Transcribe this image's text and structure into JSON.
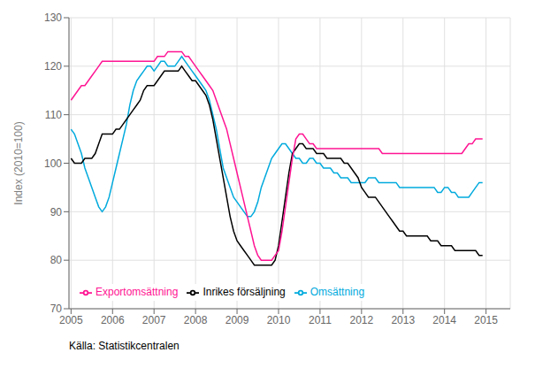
{
  "chart_data": {
    "type": "line",
    "ylabel": "Index (2010=100)",
    "annotations": [
      "Källa: Statistikcentralen"
    ],
    "xlim": [
      2004.95,
      2015.5833
    ],
    "xticks": [
      2005,
      2006,
      2007,
      2008,
      2009,
      2010,
      2011,
      2012,
      2013,
      2014,
      2015
    ],
    "ylim": [
      70,
      130
    ],
    "yticks": [
      70,
      80,
      90,
      100,
      110,
      120,
      130
    ],
    "grid": true,
    "legend": "lower left",
    "x": [
      2005,
      2005.0833,
      2005.1667,
      2005.25,
      2005.3333,
      2005.4167,
      2005.5,
      2005.5833,
      2005.6667,
      2005.75,
      2005.8333,
      2005.9167,
      2006,
      2006.0833,
      2006.1667,
      2006.25,
      2006.3333,
      2006.4167,
      2006.5,
      2006.5833,
      2006.6667,
      2006.75,
      2006.8333,
      2006.9167,
      2007,
      2007.0833,
      2007.1667,
      2007.25,
      2007.3333,
      2007.4167,
      2007.5,
      2007.5833,
      2007.6667,
      2007.75,
      2007.8333,
      2007.9167,
      2008,
      2008.0833,
      2008.1667,
      2008.25,
      2008.3333,
      2008.4167,
      2008.5,
      2008.5833,
      2008.6667,
      2008.75,
      2008.8333,
      2008.9167,
      2009,
      2009.0833,
      2009.1667,
      2009.25,
      2009.3333,
      2009.4167,
      2009.5,
      2009.5833,
      2009.6667,
      2009.75,
      2009.8333,
      2009.9167,
      2010,
      2010.0833,
      2010.1667,
      2010.25,
      2010.3333,
      2010.4167,
      2010.5,
      2010.5833,
      2010.6667,
      2010.75,
      2010.8333,
      2010.9167,
      2011,
      2011.0833,
      2011.1667,
      2011.25,
      2011.3333,
      2011.4167,
      2011.5,
      2011.5833,
      2011.6667,
      2011.75,
      2011.8333,
      2011.9167,
      2012,
      2012.0833,
      2012.1667,
      2012.25,
      2012.3333,
      2012.4167,
      2012.5,
      2012.5833,
      2012.6667,
      2012.75,
      2012.8333,
      2012.9167,
      2013,
      2013.0833,
      2013.1667,
      2013.25,
      2013.3333,
      2013.4167,
      2013.5,
      2013.5833,
      2013.6667,
      2013.75,
      2013.8333,
      2013.9167,
      2014,
      2014.0833,
      2014.1667,
      2014.25,
      2014.3333,
      2014.4167,
      2014.5,
      2014.5833,
      2014.6667,
      2014.75,
      2014.8333,
      2014.9167
    ],
    "series": [
      {
        "name": "Omsättning",
        "color": "#00aadd",
        "values": [
          107,
          106,
          104,
          102,
          99,
          97,
          95,
          93,
          91,
          90,
          91,
          93,
          96,
          99,
          102,
          105,
          108,
          112,
          115,
          117,
          118,
          119,
          120,
          120,
          119,
          120,
          121,
          121,
          120,
          120,
          120,
          121,
          122,
          121,
          120,
          119,
          118,
          117,
          116,
          115,
          113,
          110,
          107,
          103,
          99,
          97,
          95,
          93,
          92,
          91,
          90,
          89,
          89,
          90,
          92,
          95,
          97,
          99,
          101,
          102,
          103,
          104,
          104,
          103,
          102,
          101,
          101,
          100,
          100,
          101,
          101,
          100,
          100,
          99,
          99,
          99,
          98,
          98,
          97,
          97,
          97,
          96,
          96,
          96,
          96,
          96,
          97,
          97,
          97,
          96,
          96,
          96,
          96,
          96,
          96,
          95,
          95,
          95,
          95,
          95,
          95,
          95,
          95,
          95,
          95,
          95,
          94,
          94,
          95,
          95,
          94,
          94,
          93,
          93,
          93,
          93,
          94,
          95,
          96,
          96
        ]
      },
      {
        "name": "Inrikes försäljning",
        "color": "#000000",
        "values": [
          101,
          100,
          100,
          100,
          101,
          101,
          101,
          102,
          104,
          106,
          106,
          106,
          106,
          107,
          107,
          108,
          109,
          110,
          111,
          112,
          113,
          115,
          116,
          116,
          116,
          117,
          118,
          119,
          119,
          119,
          119,
          119,
          120,
          119,
          118,
          117,
          117,
          116,
          115,
          114,
          112,
          109,
          105,
          101,
          97,
          93,
          89,
          86,
          84,
          83,
          82,
          81,
          80,
          79,
          79,
          79,
          79,
          79,
          79,
          80,
          83,
          88,
          93,
          98,
          102,
          103,
          104,
          104,
          103,
          103,
          103,
          102,
          102,
          102,
          101,
          101,
          101,
          101,
          101,
          100,
          100,
          99,
          98,
          97,
          95,
          94,
          93,
          93,
          93,
          92,
          91,
          90,
          89,
          88,
          87,
          86,
          86,
          85,
          85,
          85,
          85,
          85,
          85,
          85,
          84,
          84,
          84,
          83,
          83,
          83,
          83,
          82,
          82,
          82,
          82,
          82,
          82,
          82,
          81,
          81
        ]
      },
      {
        "name": "Exportomsättning",
        "color": "#ff1493",
        "values": [
          113,
          114,
          115,
          116,
          116,
          117,
          118,
          119,
          120,
          121,
          121,
          121,
          121,
          121,
          121,
          121,
          121,
          121,
          121,
          121,
          121,
          121,
          121,
          121,
          121,
          122,
          122,
          122,
          123,
          123,
          123,
          123,
          123,
          122,
          122,
          121,
          120,
          119,
          118,
          117,
          116,
          115,
          113,
          111,
          109,
          107,
          104,
          101,
          98,
          95,
          92,
          89,
          86,
          83,
          81,
          80,
          80,
          80,
          80,
          81,
          82,
          86,
          91,
          96,
          101,
          105,
          106,
          106,
          105,
          104,
          104,
          103,
          103,
          103,
          103,
          103,
          103,
          103,
          103,
          103,
          103,
          103,
          103,
          103,
          103,
          103,
          103,
          103,
          103,
          103,
          102,
          102,
          102,
          102,
          102,
          102,
          102,
          102,
          102,
          102,
          102,
          102,
          102,
          102,
          102,
          102,
          102,
          102,
          102,
          102,
          102,
          102,
          102,
          102,
          103,
          104,
          104,
          105,
          105,
          105
        ]
      }
    ]
  }
}
